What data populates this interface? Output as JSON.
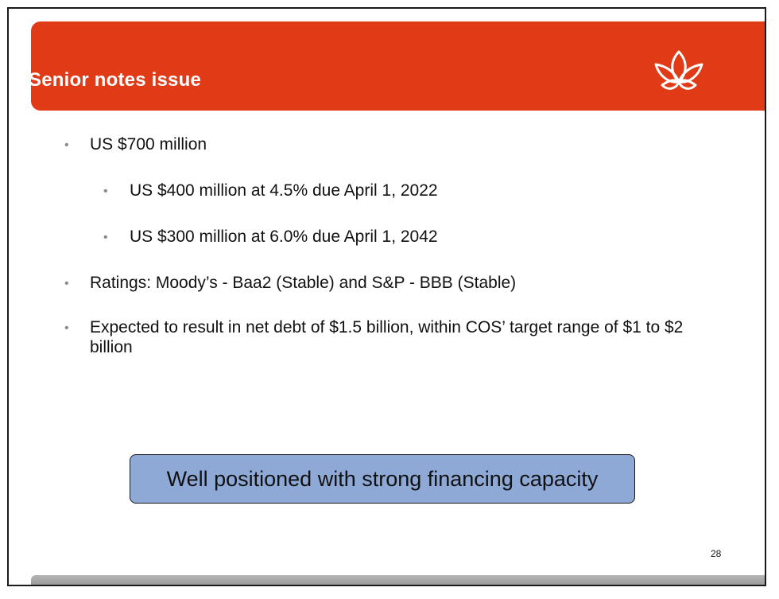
{
  "slide": {
    "title": "Senior notes issue",
    "page_number": "28",
    "accent_color": "#e03a17",
    "callout_color": "#8ea9d6"
  },
  "bullets": [
    {
      "level": 1,
      "text": "US $700 million"
    },
    {
      "level": 2,
      "text": "US $400 million at 4.5% due April 1, 2022"
    },
    {
      "level": 2,
      "text": "US $300 million at 6.0% due April 1, 2042"
    },
    {
      "level": 1,
      "text": "Ratings: Moody’s - Baa2 (Stable) and S&P - BBB (Stable)"
    },
    {
      "level": 1,
      "text": "Expected to result in net debt of $1.5 billion, within COS’ target range of $1 to $2 billion"
    }
  ],
  "callout": {
    "text": "Well positioned with strong financing capacity"
  },
  "icons": {
    "logo": "flower-logo-icon",
    "bullet": "bullet-dot-icon"
  }
}
